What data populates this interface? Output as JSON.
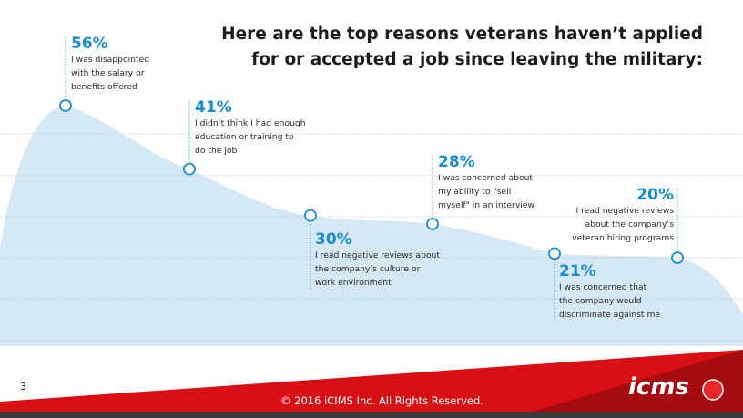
{
  "title_lines": [
    "Here are the top reasons veterans haven’t applied",
    "for or accepted a job since leaving the military:"
  ],
  "chart_data": {
    "type": "area",
    "points": [
      {
        "value": 56,
        "label": "56%",
        "text": [
          "I was disappointed",
          "with the salary or",
          "benefits offered"
        ]
      },
      {
        "value": 41,
        "label": "41%",
        "text": [
          "I didn’t think I had enough",
          "education or training to",
          "do the job"
        ]
      },
      {
        "value": 30,
        "label": "30%",
        "text": [
          "I read negative reviews about",
          "the company’s culture or",
          "work environment"
        ]
      },
      {
        "value": 28,
        "label": "28%",
        "text": [
          "I was concerned about",
          "my ability to \"sell",
          "myself\" in an interview"
        ]
      },
      {
        "value": 21,
        "label": "21%",
        "text": [
          "I was concerned that",
          "the company would",
          "discriminate against me"
        ]
      },
      {
        "value": 20,
        "label": "20%",
        "text": [
          "I read negative reviews",
          "about the company’s",
          "veteran hiring programs"
        ]
      }
    ],
    "grid": true,
    "colors": {
      "accent": "#1a8ccc",
      "area": "#d5e9f5",
      "footer": "#d90f16"
    }
  },
  "footer": {
    "page_number": "3",
    "copyright": "© 2016 iCIMS Inc. All Rights Reserved.",
    "logo": "icims"
  }
}
